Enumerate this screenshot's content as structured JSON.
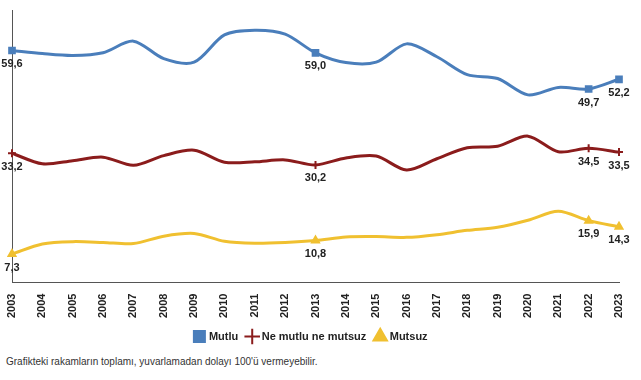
{
  "chart_data": {
    "type": "line",
    "categories": [
      "2003",
      "2004",
      "2005",
      "2006",
      "2007",
      "2008",
      "2009",
      "2010",
      "2011",
      "2012",
      "2013",
      "2014",
      "2015",
      "2016",
      "2017",
      "2018",
      "2019",
      "2020",
      "2021",
      "2022",
      "2023"
    ],
    "series": [
      {
        "name": "Mutlu",
        "color": "#4a7ebb",
        "marker": "square",
        "values": [
          59.6,
          58.8,
          58.3,
          59.0,
          62.0,
          57.5,
          56.6,
          63.6,
          64.8,
          63.8,
          59.0,
          56.5,
          56.6,
          61.3,
          58.0,
          53.4,
          52.4,
          48.2,
          50.1,
          49.7,
          52.2
        ],
        "value_labels": [
          "59,6",
          null,
          null,
          null,
          null,
          null,
          null,
          null,
          null,
          null,
          "59,0",
          null,
          null,
          null,
          null,
          null,
          null,
          null,
          null,
          "49,7",
          "52,2"
        ]
      },
      {
        "name": "Ne mutlu ne mutsuz",
        "color": "#8b1c1c",
        "marker": "plus",
        "values": [
          33.2,
          30.5,
          31.3,
          32.2,
          30.1,
          32.6,
          34.0,
          30.9,
          31.0,
          31.5,
          30.2,
          32.0,
          32.5,
          28.9,
          31.8,
          34.6,
          35.0,
          37.6,
          33.6,
          34.5,
          33.5
        ],
        "value_labels": [
          "33,2",
          null,
          null,
          null,
          null,
          null,
          null,
          null,
          null,
          null,
          "30,2",
          null,
          null,
          null,
          null,
          null,
          null,
          null,
          null,
          "34,5",
          "33,5"
        ]
      },
      {
        "name": "Mutsuz",
        "color": "#f0c030",
        "marker": "triangle",
        "values": [
          7.3,
          9.9,
          10.5,
          10.3,
          10.0,
          11.9,
          12.6,
          10.6,
          10.1,
          10.3,
          10.8,
          11.7,
          11.8,
          11.6,
          12.3,
          13.4,
          14.2,
          16.0,
          18.3,
          15.9,
          14.3
        ],
        "value_labels": [
          "7,3",
          null,
          null,
          null,
          null,
          null,
          null,
          null,
          null,
          null,
          "10,8",
          null,
          null,
          null,
          null,
          null,
          null,
          null,
          null,
          "15,9",
          "14,3"
        ]
      }
    ],
    "ylim": [
      0,
      70
    ],
    "grid": false,
    "legend": "bottom",
    "tick_labels": "x",
    "footnote": "Grafikteki rakamların toplamı, yuvarlamadan dolayı 100'ü vermeyebilir."
  }
}
